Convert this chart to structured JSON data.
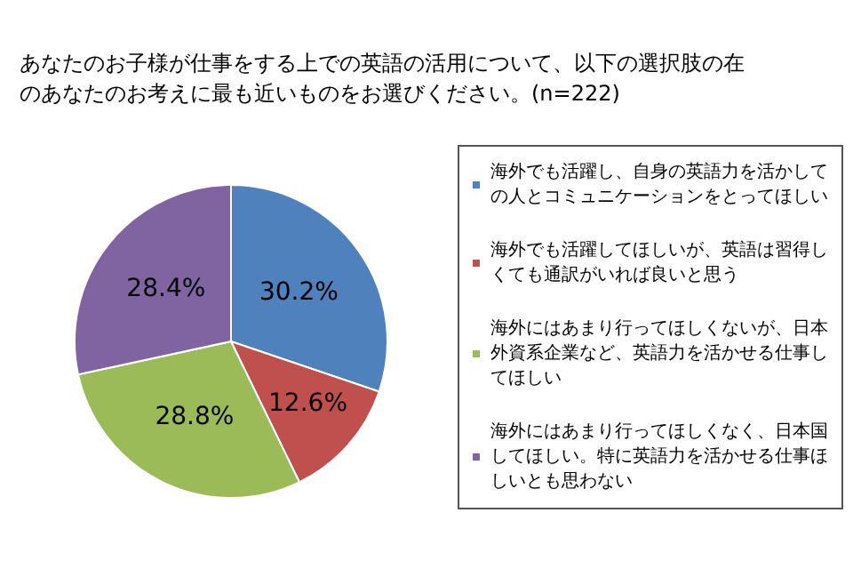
{
  "chart_data": {
    "type": "pie",
    "title": "あなたのお子様が仕事をする上での英語の活用について、以下の選択肢の在のあなたのお考えに最も近いものをお選びください。(n=222)",
    "categories": [
      "海外でも活躍し、自身の英語力を活かしての人とコミュニケーションをとってほしい",
      "海外でも活躍してほしいが、英語は習得しくても通訳がいれば良いと思う",
      "海外にはあまり行ってほしくないが、日本外資系企業など、英語力を活かせる仕事してほしい",
      "海外にはあまり行ってほしくなく、日本国してほしい。特に英語力を活かせる仕事ほしいとも思わない"
    ],
    "values": [
      30.2,
      12.6,
      28.8,
      28.4
    ],
    "colors": [
      "#4f81bd",
      "#c0504d",
      "#9bbb59",
      "#8064a2"
    ],
    "value_labels": [
      "30.2%",
      "12.6%",
      "28.8%",
      "28.4%"
    ],
    "legend": "right"
  }
}
